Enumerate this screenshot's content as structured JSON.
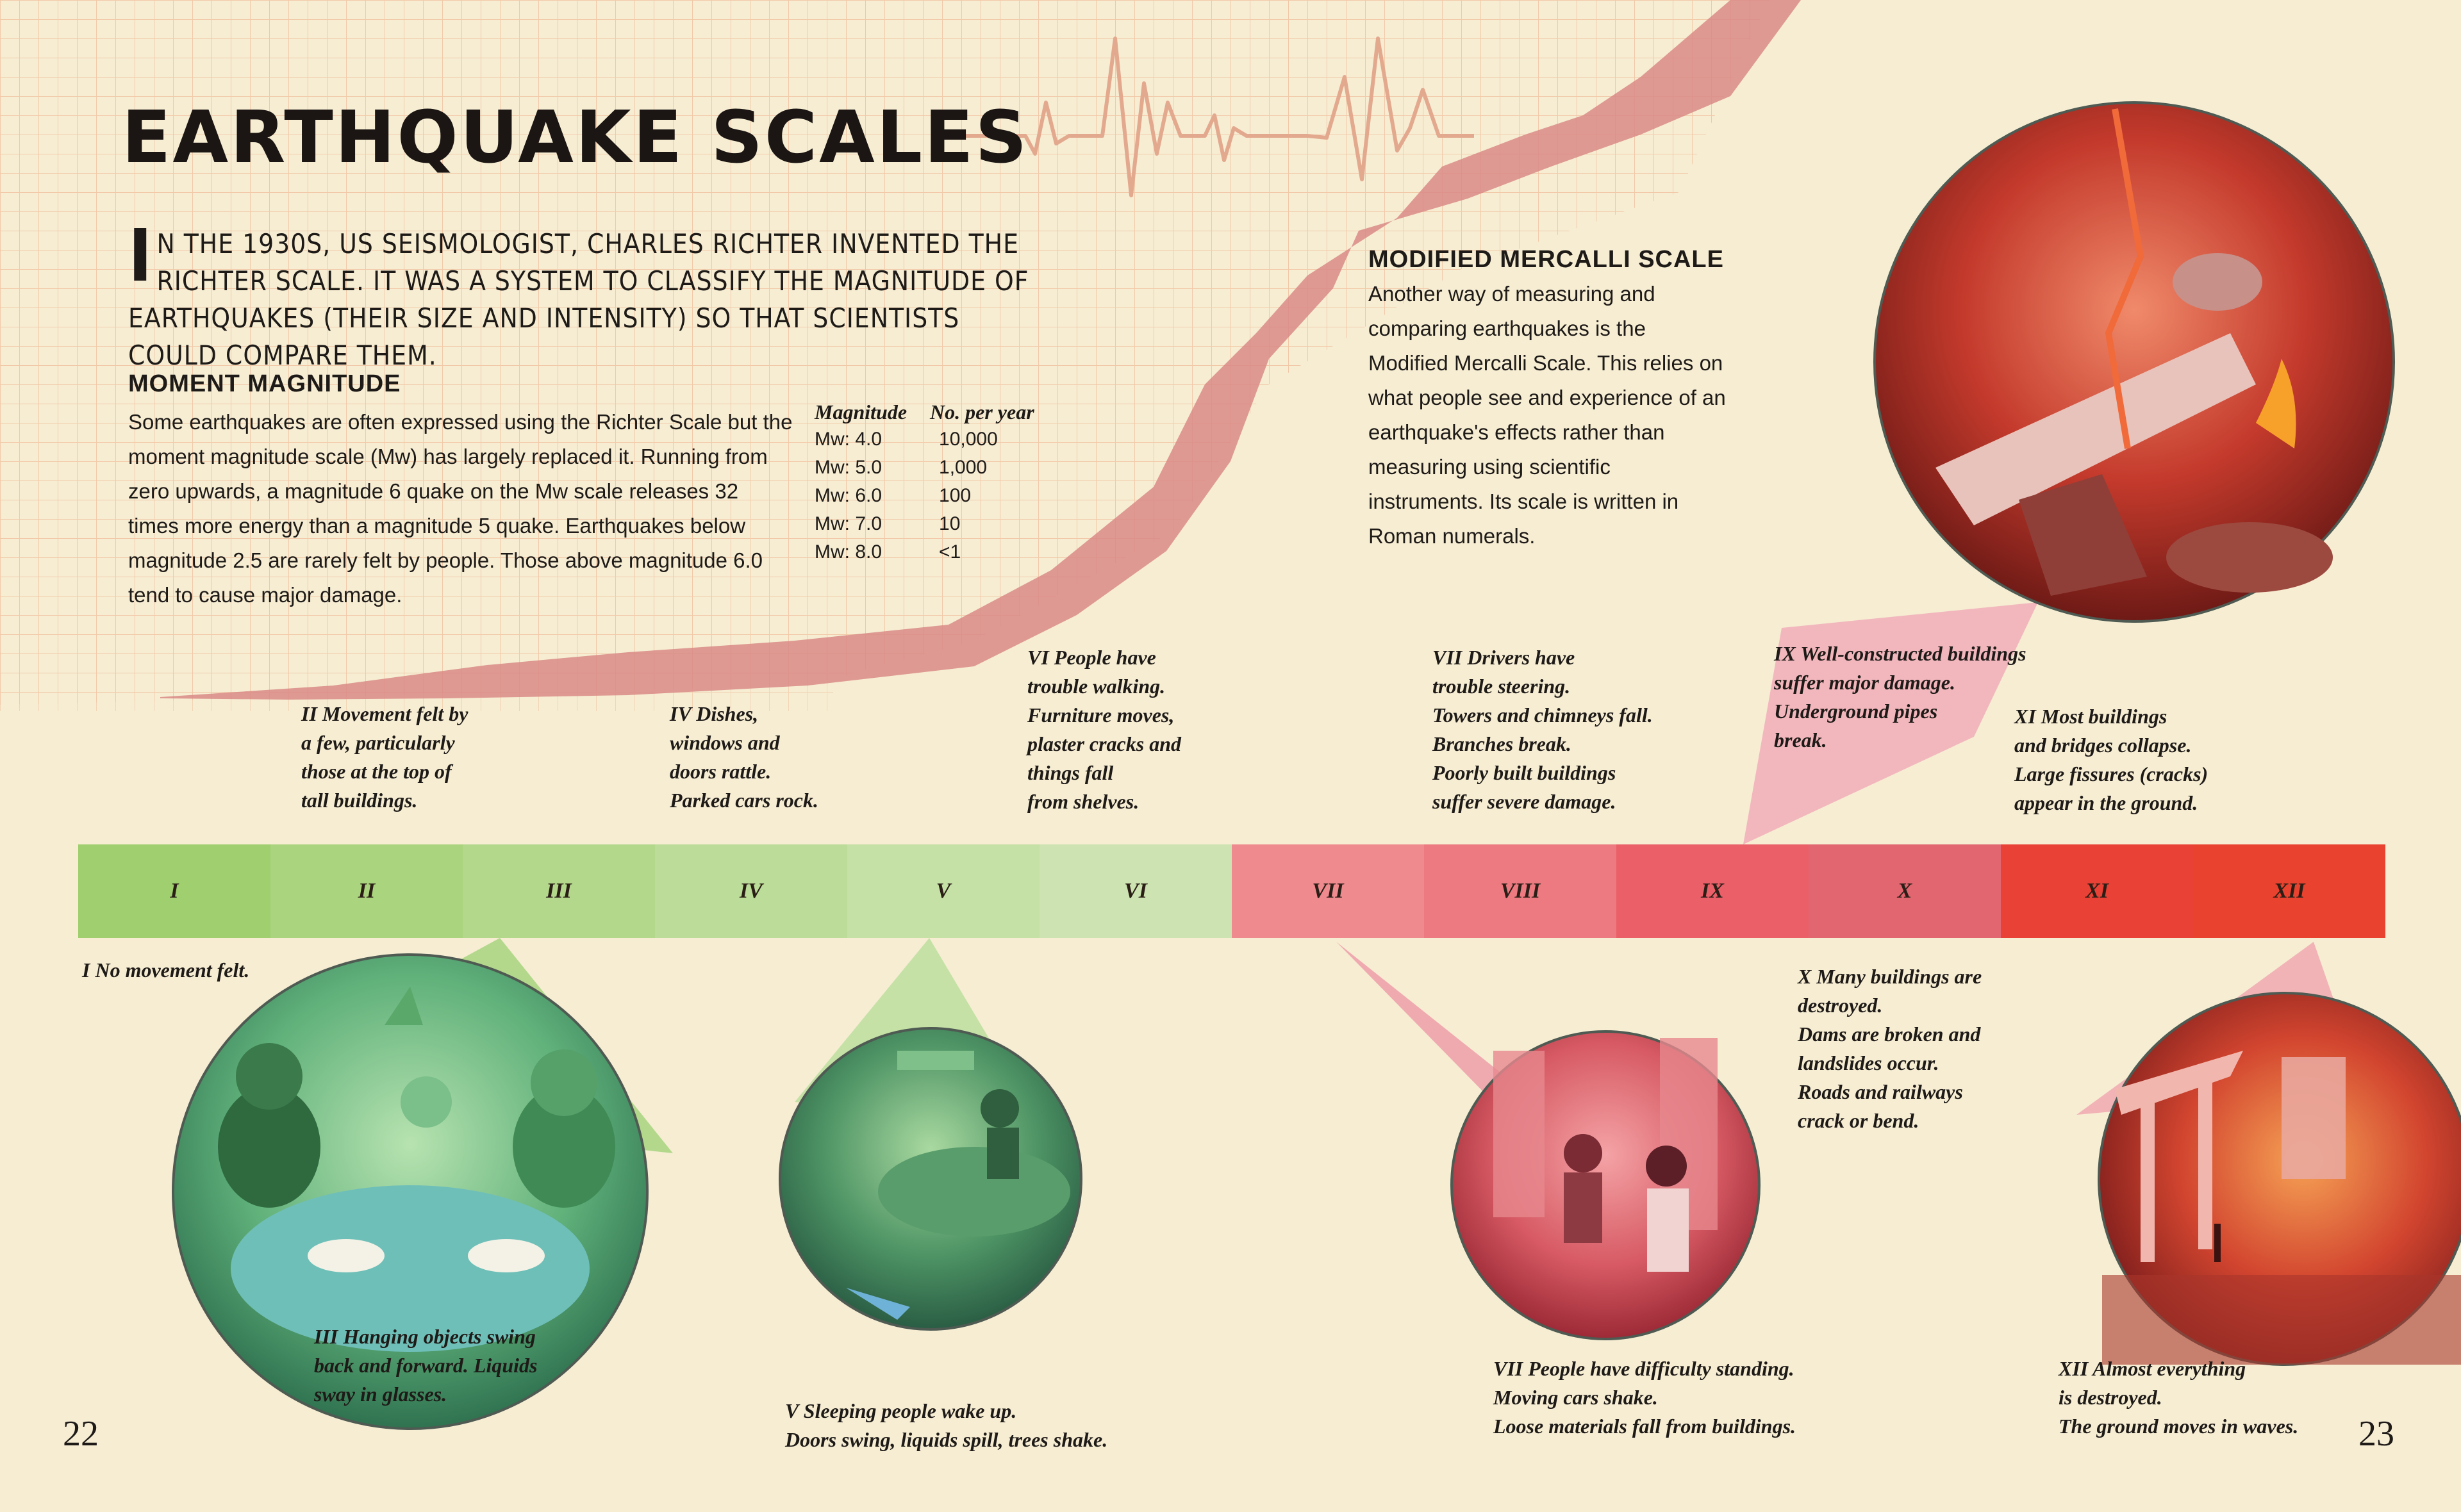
{
  "title": "EARTHQUAKE SCALES",
  "intro": {
    "first_letter": "I",
    "rest": "N THE 1930S, US SEISMOLOGIST, CHARLES RICHTER INVENTED THE RICHTER SCALE. IT WAS A SYSTEM TO CLASSIFY THE MAGNITUDE OF EARTHQUAKES (THEIR SIZE AND INTENSITY) SO THAT SCIENTISTS COULD COMPARE THEM."
  },
  "moment_magnitude": {
    "heading": "MOMENT MAGNITUDE",
    "body": "Some earthquakes are often expressed using the Richter Scale but the moment magnitude scale (Mw) has largely replaced it. Running from zero upwards, a magnitude 6 quake on the Mw scale releases 32 times more energy than a magnitude 5 quake. Earthquakes below magnitude 2.5 are rarely felt by people. Those above magnitude 6.0 tend to cause major damage."
  },
  "magnitude_table": {
    "headers": [
      "Magnitude",
      "No. per year"
    ],
    "rows": [
      [
        "Mw: 4.0",
        "10,000"
      ],
      [
        "Mw: 5.0",
        "1,000"
      ],
      [
        "Mw: 6.0",
        "100"
      ],
      [
        "Mw: 7.0",
        "10"
      ],
      [
        "Mw: 8.0",
        "<1"
      ]
    ]
  },
  "mercalli": {
    "heading": "MODIFIED MERCALLI SCALE",
    "body": "Another way of measuring and comparing earthquakes is the Modified Mercalli Scale. This relies on what people see and experience of an earthquake's effects rather than measuring using scientific instruments. Its scale is written in Roman numerals."
  },
  "scale": {
    "levels": [
      {
        "label": "I",
        "color": "#9fcf6e"
      },
      {
        "label": "II",
        "color": "#aad47d"
      },
      {
        "label": "III",
        "color": "#b3d88c"
      },
      {
        "label": "IV",
        "color": "#bcdc99"
      },
      {
        "label": "V",
        "color": "#c5e1a6"
      },
      {
        "label": "VI",
        "color": "#cde4b2"
      },
      {
        "label": "VII",
        "color": "#ef8a8f"
      },
      {
        "label": "VIII",
        "color": "#ed7a80"
      },
      {
        "label": "IX",
        "color": "#ea5f68"
      },
      {
        "label": "X",
        "color": "#e2666f"
      },
      {
        "label": "XI",
        "color": "#ea4136"
      },
      {
        "label": "XII",
        "color": "#e9432f"
      }
    ]
  },
  "notes": {
    "n1": "I No movement felt.",
    "n2": "II Movement felt by\na few, particularly\nthose at the top of\ntall buildings.",
    "n3": "III Hanging objects swing\nback and forward. Liquids\nsway in glasses.",
    "n4": "IV Dishes,\nwindows and\ndoors rattle.\nParked cars rock.",
    "n5": "V Sleeping people wake up.\nDoors swing, liquids spill, trees shake.",
    "n6": "VI People have\ntrouble walking.\nFurniture moves,\nplaster cracks and\nthings fall\nfrom shelves.",
    "n7a": "VII Drivers have\ntrouble steering.\nTowers and chimneys fall.\nBranches break.\nPoorly built buildings\nsuffer severe damage.",
    "n7b": "VII People have difficulty standing.\nMoving cars shake.\nLoose materials fall from buildings.",
    "n9": "IX Well-constructed buildings\nsuffer major damage.\nUnderground pipes\nbreak.",
    "n10": "X Many buildings are\ndestroyed.\nDams are broken and\nlandslides occur.\nRoads and railways\n crack or bend.",
    "n11": "XI Most buildings\nand bridges collapse.\nLarge fissures (cracks)\nappear in the ground.",
    "n12": "XII Almost everything\nis destroyed.\nThe ground moves in waves."
  },
  "page_left": "22",
  "page_right": "23"
}
